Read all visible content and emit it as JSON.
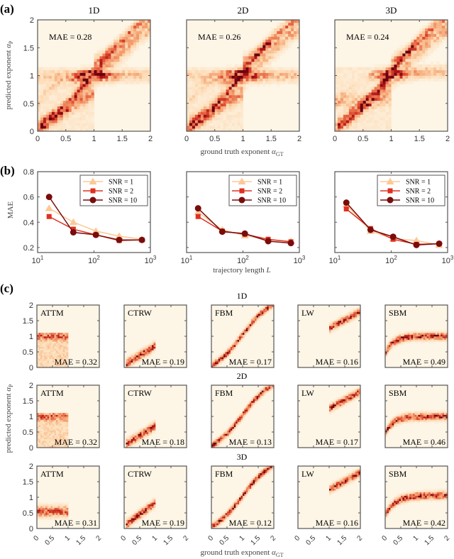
{
  "panel_labels": [
    "(a)",
    "(b)",
    "(c)"
  ],
  "colors": {
    "heatmap_colormap": [
      "#fdf5e6",
      "#fdd8b0",
      "#f4a070",
      "#e04a30",
      "#a50f15",
      "#67000d"
    ],
    "axes": "#555555"
  },
  "chart_data": [
    {
      "type": "heatmap",
      "panel_label": "(a)",
      "xlim": [
        0,
        2
      ],
      "ylim": [
        0,
        2
      ],
      "xticks": [
        "0",
        "0.5",
        "1",
        "1.5",
        "2"
      ],
      "yticks": [
        "0",
        "0.5",
        "1",
        "1.5",
        "2"
      ],
      "xlabel": {
        "text": "ground truth exponent ",
        "symbol": "α",
        "sub": "GT"
      },
      "ylabel": {
        "text": "predicted exponent ",
        "symbol": "α",
        "sub": "P"
      },
      "plots": [
        {
          "title": "1D",
          "annotation": "MAE = 0.28"
        },
        {
          "title": "2D",
          "annotation": "MAE = 0.26"
        },
        {
          "title": "3D",
          "annotation": "MAE = 0.24"
        }
      ]
    },
    {
      "type": "line",
      "panel_label": "(b)",
      "xscale": "log",
      "xlim": [
        10,
        1000
      ],
      "ylim": [
        0.16,
        0.8
      ],
      "x": [
        16,
        43,
        108,
        280,
        708
      ],
      "xticks": [
        {
          "base": "10",
          "exp": "1"
        },
        {
          "base": "10",
          "exp": "2"
        },
        {
          "base": "10",
          "exp": "3"
        }
      ],
      "yticks": [
        "0.2",
        "0.4",
        "0.6",
        "0.8"
      ],
      "xlabel": {
        "text": "trajectory length ",
        "symbol": "L"
      },
      "ylabel": "MAE",
      "legend": "top-right",
      "plots": [
        {
          "series": [
            {
              "name": "SNR = 1",
              "color": "#fdc895",
              "marker": "triangle",
              "values": [
                0.51,
                0.4,
                0.33,
                0.29,
                0.265
              ]
            },
            {
              "name": "SNR = 2",
              "color": "#e03020",
              "marker": "square",
              "values": [
                0.445,
                0.345,
                0.3,
                0.255,
                0.26
              ]
            },
            {
              "name": "SNR = 10",
              "color": "#7a0c0c",
              "marker": "circle",
              "values": [
                0.6,
                0.32,
                0.3,
                0.26,
                0.26
              ]
            }
          ]
        },
        {
          "series": [
            {
              "name": "SNR = 1",
              "color": "#fdc895",
              "marker": "triangle",
              "values": [
                0.48,
                0.34,
                0.295,
                0.26,
                0.25
              ]
            },
            {
              "name": "SNR = 2",
              "color": "#e03020",
              "marker": "square",
              "values": [
                0.445,
                0.33,
                0.305,
                0.265,
                0.245
              ]
            },
            {
              "name": "SNR = 10",
              "color": "#7a0c0c",
              "marker": "circle",
              "values": [
                0.51,
                0.325,
                0.31,
                0.25,
                0.235
              ]
            }
          ]
        },
        {
          "series": [
            {
              "name": "SNR = 1",
              "color": "#fdc895",
              "marker": "triangle",
              "values": [
                0.54,
                0.33,
                0.27,
                0.255,
                0.22
              ]
            },
            {
              "name": "SNR = 2",
              "color": "#e03020",
              "marker": "square",
              "values": [
                0.505,
                0.35,
                0.265,
                0.225,
                0.23
              ]
            },
            {
              "name": "SNR = 10",
              "color": "#7a0c0c",
              "marker": "circle",
              "values": [
                0.555,
                0.34,
                0.285,
                0.22,
                0.23
              ]
            }
          ]
        }
      ]
    },
    {
      "type": "heatmap",
      "panel_label": "(c)",
      "xlim": [
        0,
        2
      ],
      "ylim": [
        0,
        2
      ],
      "xticks": [
        "0",
        "0.5",
        "1",
        "1.5",
        "2"
      ],
      "yticks": [
        "0",
        "0.5",
        "1",
        "1.5",
        "2"
      ],
      "xlabel": {
        "text": "ground truth exponent ",
        "symbol": "α",
        "sub": "GT"
      },
      "ylabel": {
        "text": "predicted exponent ",
        "symbol": "α",
        "sub": "P"
      },
      "rows": [
        {
          "title": "1D",
          "plots": [
            {
              "model": "ATTM",
              "annotation": "MAE = 0.32"
            },
            {
              "model": "CTRW",
              "annotation": "MAE = 0.19"
            },
            {
              "model": "FBM",
              "annotation": "MAE = 0.17"
            },
            {
              "model": "LW",
              "annotation": "MAE = 0.16"
            },
            {
              "model": "SBM",
              "annotation": "MAE = 0.49"
            }
          ]
        },
        {
          "title": "2D",
          "plots": [
            {
              "model": "ATTM",
              "annotation": "MAE = 0.32"
            },
            {
              "model": "CTRW",
              "annotation": "MAE = 0.18"
            },
            {
              "model": "FBM",
              "annotation": "MAE = 0.13"
            },
            {
              "model": "LW",
              "annotation": "MAE = 0.17"
            },
            {
              "model": "SBM",
              "annotation": "MAE = 0.46"
            }
          ]
        },
        {
          "title": "3D",
          "plots": [
            {
              "model": "ATTM",
              "annotation": "MAE = 0.31"
            },
            {
              "model": "CTRW",
              "annotation": "MAE = 0.19"
            },
            {
              "model": "FBM",
              "annotation": "MAE = 0.12"
            },
            {
              "model": "LW",
              "annotation": "MAE = 0.16"
            },
            {
              "model": "SBM",
              "annotation": "MAE = 0.42"
            }
          ]
        }
      ]
    }
  ]
}
